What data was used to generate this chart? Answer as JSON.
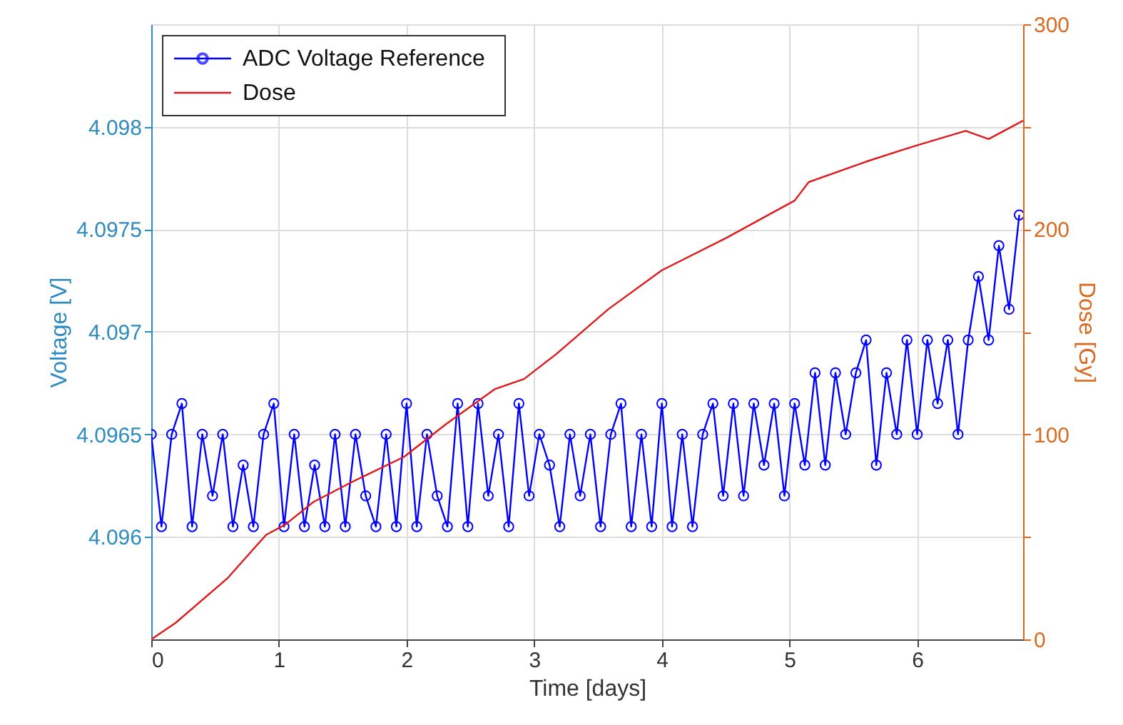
{
  "chart_data": {
    "type": "line",
    "xlabel": "Time [days]",
    "ylabel": "Voltage [V]",
    "y2label": "Dose [Gy]",
    "xlim": [
      0,
      6.83
    ],
    "xticks": [
      0,
      1,
      2,
      3,
      4,
      5,
      6
    ],
    "ylim": [
      4.0955,
      4.0985
    ],
    "yticks": [
      4.096,
      4.0965,
      4.097,
      4.0975,
      4.098
    ],
    "y2lim": [
      0,
      300
    ],
    "y2ticks": [
      0,
      {
        "value": 50,
        "label": null
      },
      100,
      {
        "value": 150,
        "label": null
      },
      200,
      {
        "value": 250,
        "label": null
      },
      300
    ],
    "grid": true,
    "legend": "top left",
    "series": [
      {
        "name": "ADC Voltage Reference",
        "color": "#0000ff",
        "marker": "circle",
        "x": [
          0,
          0.08,
          0.16,
          0.24,
          0.32,
          0.4,
          0.48,
          0.56,
          0.64,
          0.72,
          0.8,
          0.88,
          0.96,
          1.04,
          1.12,
          1.2,
          1.28,
          1.36,
          1.44,
          1.52,
          1.6,
          1.68,
          1.76,
          1.84,
          1.92,
          2.0,
          2.08,
          2.16,
          2.24,
          2.32,
          2.4,
          2.48,
          2.56,
          2.64,
          2.72,
          2.8,
          2.88,
          2.96,
          3.04,
          3.12,
          3.2,
          3.28,
          3.36,
          3.44,
          3.52,
          3.6,
          3.68,
          3.76,
          3.84,
          3.92,
          4.0,
          4.08,
          4.16,
          4.24,
          4.32,
          4.4,
          4.48,
          4.56,
          4.64,
          4.72,
          4.8,
          4.88,
          4.96,
          5.04,
          5.12,
          5.2,
          5.28,
          5.36,
          5.44,
          5.52,
          5.6,
          5.68,
          5.76,
          5.84,
          5.92,
          6.0,
          6.08,
          6.16,
          6.24,
          6.32,
          6.4,
          6.48,
          6.56,
          6.64,
          6.72,
          6.8
        ],
        "values": [
          4.0965,
          4.09605,
          4.0965,
          4.09665,
          4.09605,
          4.0965,
          4.0962,
          4.0965,
          4.09605,
          4.09635,
          4.09605,
          4.0965,
          4.09665,
          4.09605,
          4.0965,
          4.09605,
          4.09635,
          4.09605,
          4.0965,
          4.09605,
          4.0965,
          4.0962,
          4.09605,
          4.0965,
          4.09605,
          4.09665,
          4.09605,
          4.0965,
          4.0962,
          4.09605,
          4.09665,
          4.09605,
          4.09665,
          4.0962,
          4.0965,
          4.09605,
          4.09665,
          4.0962,
          4.0965,
          4.09635,
          4.09605,
          4.0965,
          4.0962,
          4.0965,
          4.09605,
          4.0965,
          4.09665,
          4.09605,
          4.0965,
          4.09605,
          4.09665,
          4.09605,
          4.0965,
          4.09605,
          4.0965,
          4.09665,
          4.0962,
          4.09665,
          4.0962,
          4.09665,
          4.09635,
          4.09665,
          4.0962,
          4.09665,
          4.09635,
          4.0968,
          4.09635,
          4.0968,
          4.0965,
          4.0968,
          4.09696,
          4.09635,
          4.0968,
          4.0965,
          4.09696,
          4.0965,
          4.09696,
          4.09665,
          4.09696,
          4.0965,
          4.09696,
          4.09727,
          4.09696,
          4.09742,
          4.09711,
          4.09757
        ]
      },
      {
        "name": "Dose",
        "color": "#e0191c",
        "marker": "none",
        "axis": "y2",
        "x": [
          0,
          0.19,
          0.6,
          0.9,
          1.05,
          1.27,
          1.58,
          1.98,
          2.31,
          2.69,
          2.92,
          3.17,
          3.58,
          4.0,
          4.51,
          5.04,
          5.15,
          5.6,
          6.0,
          6.38,
          6.56,
          6.83
        ],
        "values": [
          0,
          8,
          30,
          51,
          56,
          67,
          77,
          89,
          105,
          122,
          127,
          139,
          161,
          180,
          196,
          214,
          223,
          233,
          241,
          248,
          244,
          253
        ]
      }
    ]
  }
}
